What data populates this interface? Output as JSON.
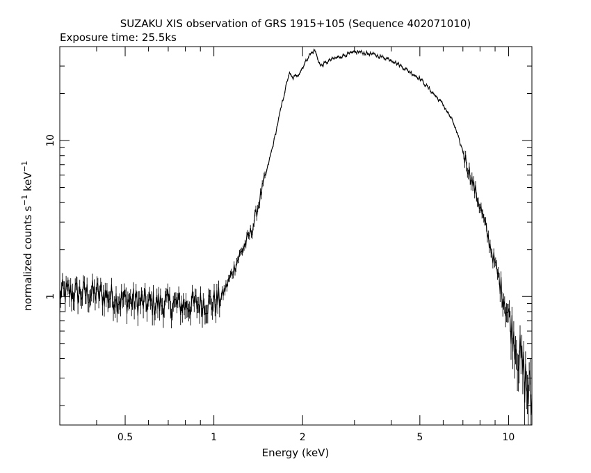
{
  "chart_data": {
    "type": "line",
    "title": "SUZAKU XIS observation of GRS 1915+105 (Sequence 402071010)",
    "subtitle": "Exposure time: 25.5ks",
    "xlabel": "Energy (keV)",
    "ylabel_main": "normalized counts s",
    "ylabel_sup1": "−1",
    "ylabel_mid": " keV",
    "ylabel_sup2": "−1",
    "x_scale": "log",
    "y_scale": "log",
    "xlim": [
      0.3,
      12
    ],
    "ylim": [
      0.15,
      40
    ],
    "x_tick_labels": [
      {
        "value": 0.5,
        "label": "0.5"
      },
      {
        "value": 1,
        "label": "1"
      },
      {
        "value": 2,
        "label": "2"
      },
      {
        "value": 5,
        "label": "5"
      },
      {
        "value": 10,
        "label": "10"
      }
    ],
    "y_tick_labels": [
      {
        "value": 1,
        "label": "1"
      },
      {
        "value": 10,
        "label": "10"
      }
    ],
    "grid": false,
    "series": [
      {
        "x": [
          0.3,
          0.4,
          0.5,
          0.6,
          0.7,
          0.8,
          0.9,
          1.0,
          1.05,
          1.1,
          1.2,
          1.35,
          1.5,
          1.6,
          1.7,
          1.8,
          1.85,
          1.95,
          2.1,
          2.2,
          2.3,
          2.5,
          2.8,
          3.1,
          3.5,
          4.0,
          5.0,
          6.0,
          6.5,
          7.0,
          8.0,
          9.0,
          10.0,
          11.0,
          12.0
        ],
        "values": [
          1.05,
          1.05,
          0.95,
          0.9,
          0.9,
          0.88,
          0.9,
          0.92,
          0.95,
          1.15,
          1.7,
          2.7,
          6.0,
          10.0,
          17.0,
          27.0,
          25.0,
          27.0,
          35.0,
          38.0,
          30.0,
          33.0,
          35.5,
          37.0,
          35.5,
          33.0,
          25.0,
          17.0,
          13.0,
          8.5,
          3.8,
          1.6,
          0.75,
          0.38,
          0.2
        ]
      }
    ]
  }
}
